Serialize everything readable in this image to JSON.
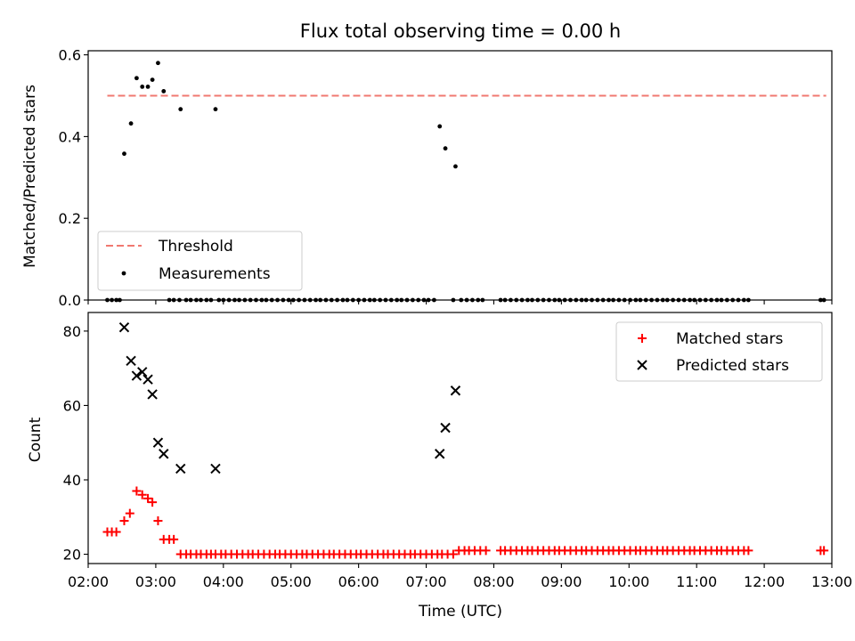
{
  "chart_data": [
    {
      "type": "scatter",
      "title": "Flux total observing time = 0.00 h",
      "xlabel": "",
      "ylabel": "Matched/Predicted stars",
      "xlim": [
        "02:00",
        "13:00"
      ],
      "ylim": [
        0,
        0.61
      ],
      "yticks": [
        0.0,
        0.2,
        0.4,
        0.6
      ],
      "ytick_labels": [
        "0.0",
        "0.2",
        "0.4",
        "0.6"
      ],
      "legend_position": "lower-left",
      "threshold": {
        "name": "Threshold",
        "value": 0.5,
        "x_range": [
          "02:17",
          "12:55"
        ],
        "color": "#f07870",
        "style": "dashed"
      },
      "series": [
        {
          "name": "Measurements",
          "color": "#000000",
          "marker": "dot",
          "points": [
            [
              "02:17",
              0
            ],
            [
              "02:21",
              0
            ],
            [
              "02:25",
              0
            ],
            [
              "02:28",
              0
            ],
            [
              "02:32",
              0.358
            ],
            [
              "02:38",
              0.432
            ],
            [
              "02:43",
              0.543
            ],
            [
              "02:48",
              0.522
            ],
            [
              "02:53",
              0.522
            ],
            [
              "02:57",
              0.539
            ],
            [
              "03:02",
              0.58
            ],
            [
              "03:07",
              0.511
            ],
            [
              "03:12",
              0
            ],
            [
              "03:16",
              0
            ],
            [
              "03:21",
              0
            ],
            [
              "03:22",
              0.467
            ],
            [
              "03:27",
              0
            ],
            [
              "03:31",
              0
            ],
            [
              "03:36",
              0
            ],
            [
              "03:40",
              0
            ],
            [
              "03:45",
              0
            ],
            [
              "03:49",
              0
            ],
            [
              "03:53",
              0.467
            ],
            [
              "03:56",
              0
            ],
            [
              "04:00",
              0
            ],
            [
              "04:05",
              0
            ],
            [
              "04:10",
              0
            ],
            [
              "04:14",
              0
            ],
            [
              "04:19",
              0
            ],
            [
              "04:24",
              0
            ],
            [
              "04:29",
              0
            ],
            [
              "04:34",
              0
            ],
            [
              "04:38",
              0
            ],
            [
              "04:43",
              0
            ],
            [
              "04:48",
              0
            ],
            [
              "04:53",
              0
            ],
            [
              "04:58",
              0
            ],
            [
              "05:02",
              0
            ],
            [
              "05:07",
              0
            ],
            [
              "05:12",
              0
            ],
            [
              "05:17",
              0
            ],
            [
              "05:22",
              0
            ],
            [
              "05:26",
              0
            ],
            [
              "05:31",
              0
            ],
            [
              "05:36",
              0
            ],
            [
              "05:41",
              0
            ],
            [
              "05:46",
              0
            ],
            [
              "05:50",
              0
            ],
            [
              "05:55",
              0
            ],
            [
              "06:00",
              0
            ],
            [
              "06:05",
              0
            ],
            [
              "06:10",
              0
            ],
            [
              "06:14",
              0
            ],
            [
              "06:19",
              0
            ],
            [
              "06:24",
              0
            ],
            [
              "06:29",
              0
            ],
            [
              "06:34",
              0
            ],
            [
              "06:38",
              0
            ],
            [
              "06:43",
              0
            ],
            [
              "06:48",
              0
            ],
            [
              "06:53",
              0
            ],
            [
              "06:58",
              0
            ],
            [
              "07:02",
              0
            ],
            [
              "07:07",
              0
            ],
            [
              "07:12",
              0.425
            ],
            [
              "07:17",
              0.371
            ],
            [
              "07:24",
              0
            ],
            [
              "07:26",
              0.327
            ],
            [
              "07:31",
              0
            ],
            [
              "07:36",
              0
            ],
            [
              "07:41",
              0
            ],
            [
              "07:46",
              0
            ],
            [
              "07:50",
              0
            ],
            [
              "08:06",
              0
            ],
            [
              "08:10",
              0
            ],
            [
              "08:15",
              0
            ],
            [
              "08:20",
              0
            ],
            [
              "08:25",
              0
            ],
            [
              "08:30",
              0
            ],
            [
              "08:34",
              0
            ],
            [
              "08:39",
              0
            ],
            [
              "08:44",
              0
            ],
            [
              "08:49",
              0
            ],
            [
              "08:54",
              0
            ],
            [
              "08:58",
              0
            ],
            [
              "09:03",
              0
            ],
            [
              "09:08",
              0
            ],
            [
              "09:13",
              0
            ],
            [
              "09:18",
              0
            ],
            [
              "09:22",
              0
            ],
            [
              "09:27",
              0
            ],
            [
              "09:32",
              0
            ],
            [
              "09:37",
              0
            ],
            [
              "09:42",
              0
            ],
            [
              "09:46",
              0
            ],
            [
              "09:51",
              0
            ],
            [
              "09:56",
              0
            ],
            [
              "10:01",
              0
            ],
            [
              "10:06",
              0
            ],
            [
              "10:10",
              0
            ],
            [
              "10:15",
              0
            ],
            [
              "10:20",
              0
            ],
            [
              "10:25",
              0
            ],
            [
              "10:30",
              0
            ],
            [
              "10:34",
              0
            ],
            [
              "10:39",
              0
            ],
            [
              "10:44",
              0
            ],
            [
              "10:49",
              0
            ],
            [
              "10:54",
              0
            ],
            [
              "10:58",
              0
            ],
            [
              "11:03",
              0
            ],
            [
              "11:08",
              0
            ],
            [
              "11:13",
              0
            ],
            [
              "11:18",
              0
            ],
            [
              "11:22",
              0
            ],
            [
              "11:27",
              0
            ],
            [
              "11:32",
              0
            ],
            [
              "11:37",
              0
            ],
            [
              "11:42",
              0
            ],
            [
              "11:46",
              0
            ],
            [
              "12:50",
              0
            ],
            [
              "12:53",
              0
            ]
          ]
        }
      ]
    },
    {
      "type": "scatter",
      "title": "",
      "xlabel": "Time (UTC)",
      "ylabel": "Count",
      "xlim": [
        "02:00",
        "13:00"
      ],
      "ylim": [
        17.5,
        85
      ],
      "yticks": [
        20,
        40,
        60,
        80
      ],
      "ytick_labels": [
        "20",
        "40",
        "60",
        "80"
      ],
      "xticks": [
        "02:00",
        "03:00",
        "04:00",
        "05:00",
        "06:00",
        "07:00",
        "08:00",
        "09:00",
        "10:00",
        "11:00",
        "12:00",
        "13:00"
      ],
      "legend_position": "upper-right",
      "series": [
        {
          "name": "Matched stars",
          "color": "#ff0000",
          "marker": "plus",
          "points": [
            [
              "02:17",
              26
            ],
            [
              "02:21",
              26
            ],
            [
              "02:25",
              26
            ],
            [
              "02:32",
              29
            ],
            [
              "02:37",
              31
            ],
            [
              "02:43",
              37
            ],
            [
              "02:48",
              36
            ],
            [
              "02:53",
              35
            ],
            [
              "02:57",
              34
            ],
            [
              "03:02",
              29
            ],
            [
              "03:07",
              24
            ],
            [
              "03:12",
              24
            ],
            [
              "03:16",
              24
            ],
            [
              "03:22",
              20
            ],
            [
              "03:27",
              20
            ],
            [
              "03:31",
              20
            ],
            [
              "03:36",
              20
            ],
            [
              "03:40",
              20
            ],
            [
              "03:45",
              20
            ],
            [
              "03:49",
              20
            ],
            [
              "03:53",
              20
            ],
            [
              "03:58",
              20
            ],
            [
              "04:02",
              20
            ],
            [
              "04:07",
              20
            ],
            [
              "04:12",
              20
            ],
            [
              "04:17",
              20
            ],
            [
              "04:22",
              20
            ],
            [
              "04:26",
              20
            ],
            [
              "04:31",
              20
            ],
            [
              "04:36",
              20
            ],
            [
              "04:41",
              20
            ],
            [
              "04:46",
              20
            ],
            [
              "04:50",
              20
            ],
            [
              "04:55",
              20
            ],
            [
              "05:00",
              20
            ],
            [
              "05:05",
              20
            ],
            [
              "05:10",
              20
            ],
            [
              "05:14",
              20
            ],
            [
              "05:19",
              20
            ],
            [
              "05:24",
              20
            ],
            [
              "05:29",
              20
            ],
            [
              "05:34",
              20
            ],
            [
              "05:38",
              20
            ],
            [
              "05:43",
              20
            ],
            [
              "05:48",
              20
            ],
            [
              "05:53",
              20
            ],
            [
              "05:58",
              20
            ],
            [
              "06:02",
              20
            ],
            [
              "06:07",
              20
            ],
            [
              "06:12",
              20
            ],
            [
              "06:17",
              20
            ],
            [
              "06:22",
              20
            ],
            [
              "06:26",
              20
            ],
            [
              "06:31",
              20
            ],
            [
              "06:36",
              20
            ],
            [
              "06:41",
              20
            ],
            [
              "06:46",
              20
            ],
            [
              "06:50",
              20
            ],
            [
              "06:55",
              20
            ],
            [
              "07:00",
              20
            ],
            [
              "07:05",
              20
            ],
            [
              "07:10",
              20
            ],
            [
              "07:14",
              20
            ],
            [
              "07:19",
              20
            ],
            [
              "07:24",
              20
            ],
            [
              "07:29",
              21
            ],
            [
              "07:34",
              21
            ],
            [
              "07:38",
              21
            ],
            [
              "07:43",
              21
            ],
            [
              "07:48",
              21
            ],
            [
              "07:53",
              21
            ],
            [
              "08:06",
              21
            ],
            [
              "08:10",
              21
            ],
            [
              "08:15",
              21
            ],
            [
              "08:20",
              21
            ],
            [
              "08:25",
              21
            ],
            [
              "08:30",
              21
            ],
            [
              "08:34",
              21
            ],
            [
              "08:39",
              21
            ],
            [
              "08:44",
              21
            ],
            [
              "08:49",
              21
            ],
            [
              "08:54",
              21
            ],
            [
              "08:58",
              21
            ],
            [
              "09:03",
              21
            ],
            [
              "09:08",
              21
            ],
            [
              "09:13",
              21
            ],
            [
              "09:18",
              21
            ],
            [
              "09:22",
              21
            ],
            [
              "09:27",
              21
            ],
            [
              "09:32",
              21
            ],
            [
              "09:37",
              21
            ],
            [
              "09:42",
              21
            ],
            [
              "09:46",
              21
            ],
            [
              "09:51",
              21
            ],
            [
              "09:56",
              21
            ],
            [
              "10:01",
              21
            ],
            [
              "10:06",
              21
            ],
            [
              "10:10",
              21
            ],
            [
              "10:15",
              21
            ],
            [
              "10:20",
              21
            ],
            [
              "10:25",
              21
            ],
            [
              "10:30",
              21
            ],
            [
              "10:34",
              21
            ],
            [
              "10:39",
              21
            ],
            [
              "10:44",
              21
            ],
            [
              "10:49",
              21
            ],
            [
              "10:54",
              21
            ],
            [
              "10:58",
              21
            ],
            [
              "11:03",
              21
            ],
            [
              "11:08",
              21
            ],
            [
              "11:13",
              21
            ],
            [
              "11:18",
              21
            ],
            [
              "11:22",
              21
            ],
            [
              "11:27",
              21
            ],
            [
              "11:32",
              21
            ],
            [
              "11:37",
              21
            ],
            [
              "11:42",
              21
            ],
            [
              "11:46",
              21
            ],
            [
              "12:50",
              21
            ],
            [
              "12:53",
              21
            ]
          ]
        },
        {
          "name": "Predicted stars",
          "color": "#000000",
          "marker": "x",
          "points": [
            [
              "02:32",
              81
            ],
            [
              "02:38",
              72
            ],
            [
              "02:43",
              68
            ],
            [
              "02:48",
              69
            ],
            [
              "02:53",
              67
            ],
            [
              "02:57",
              63
            ],
            [
              "03:02",
              50
            ],
            [
              "03:07",
              47
            ],
            [
              "03:22",
              43
            ],
            [
              "03:53",
              43
            ],
            [
              "07:12",
              47
            ],
            [
              "07:17",
              54
            ],
            [
              "07:26",
              64
            ]
          ]
        }
      ]
    }
  ]
}
